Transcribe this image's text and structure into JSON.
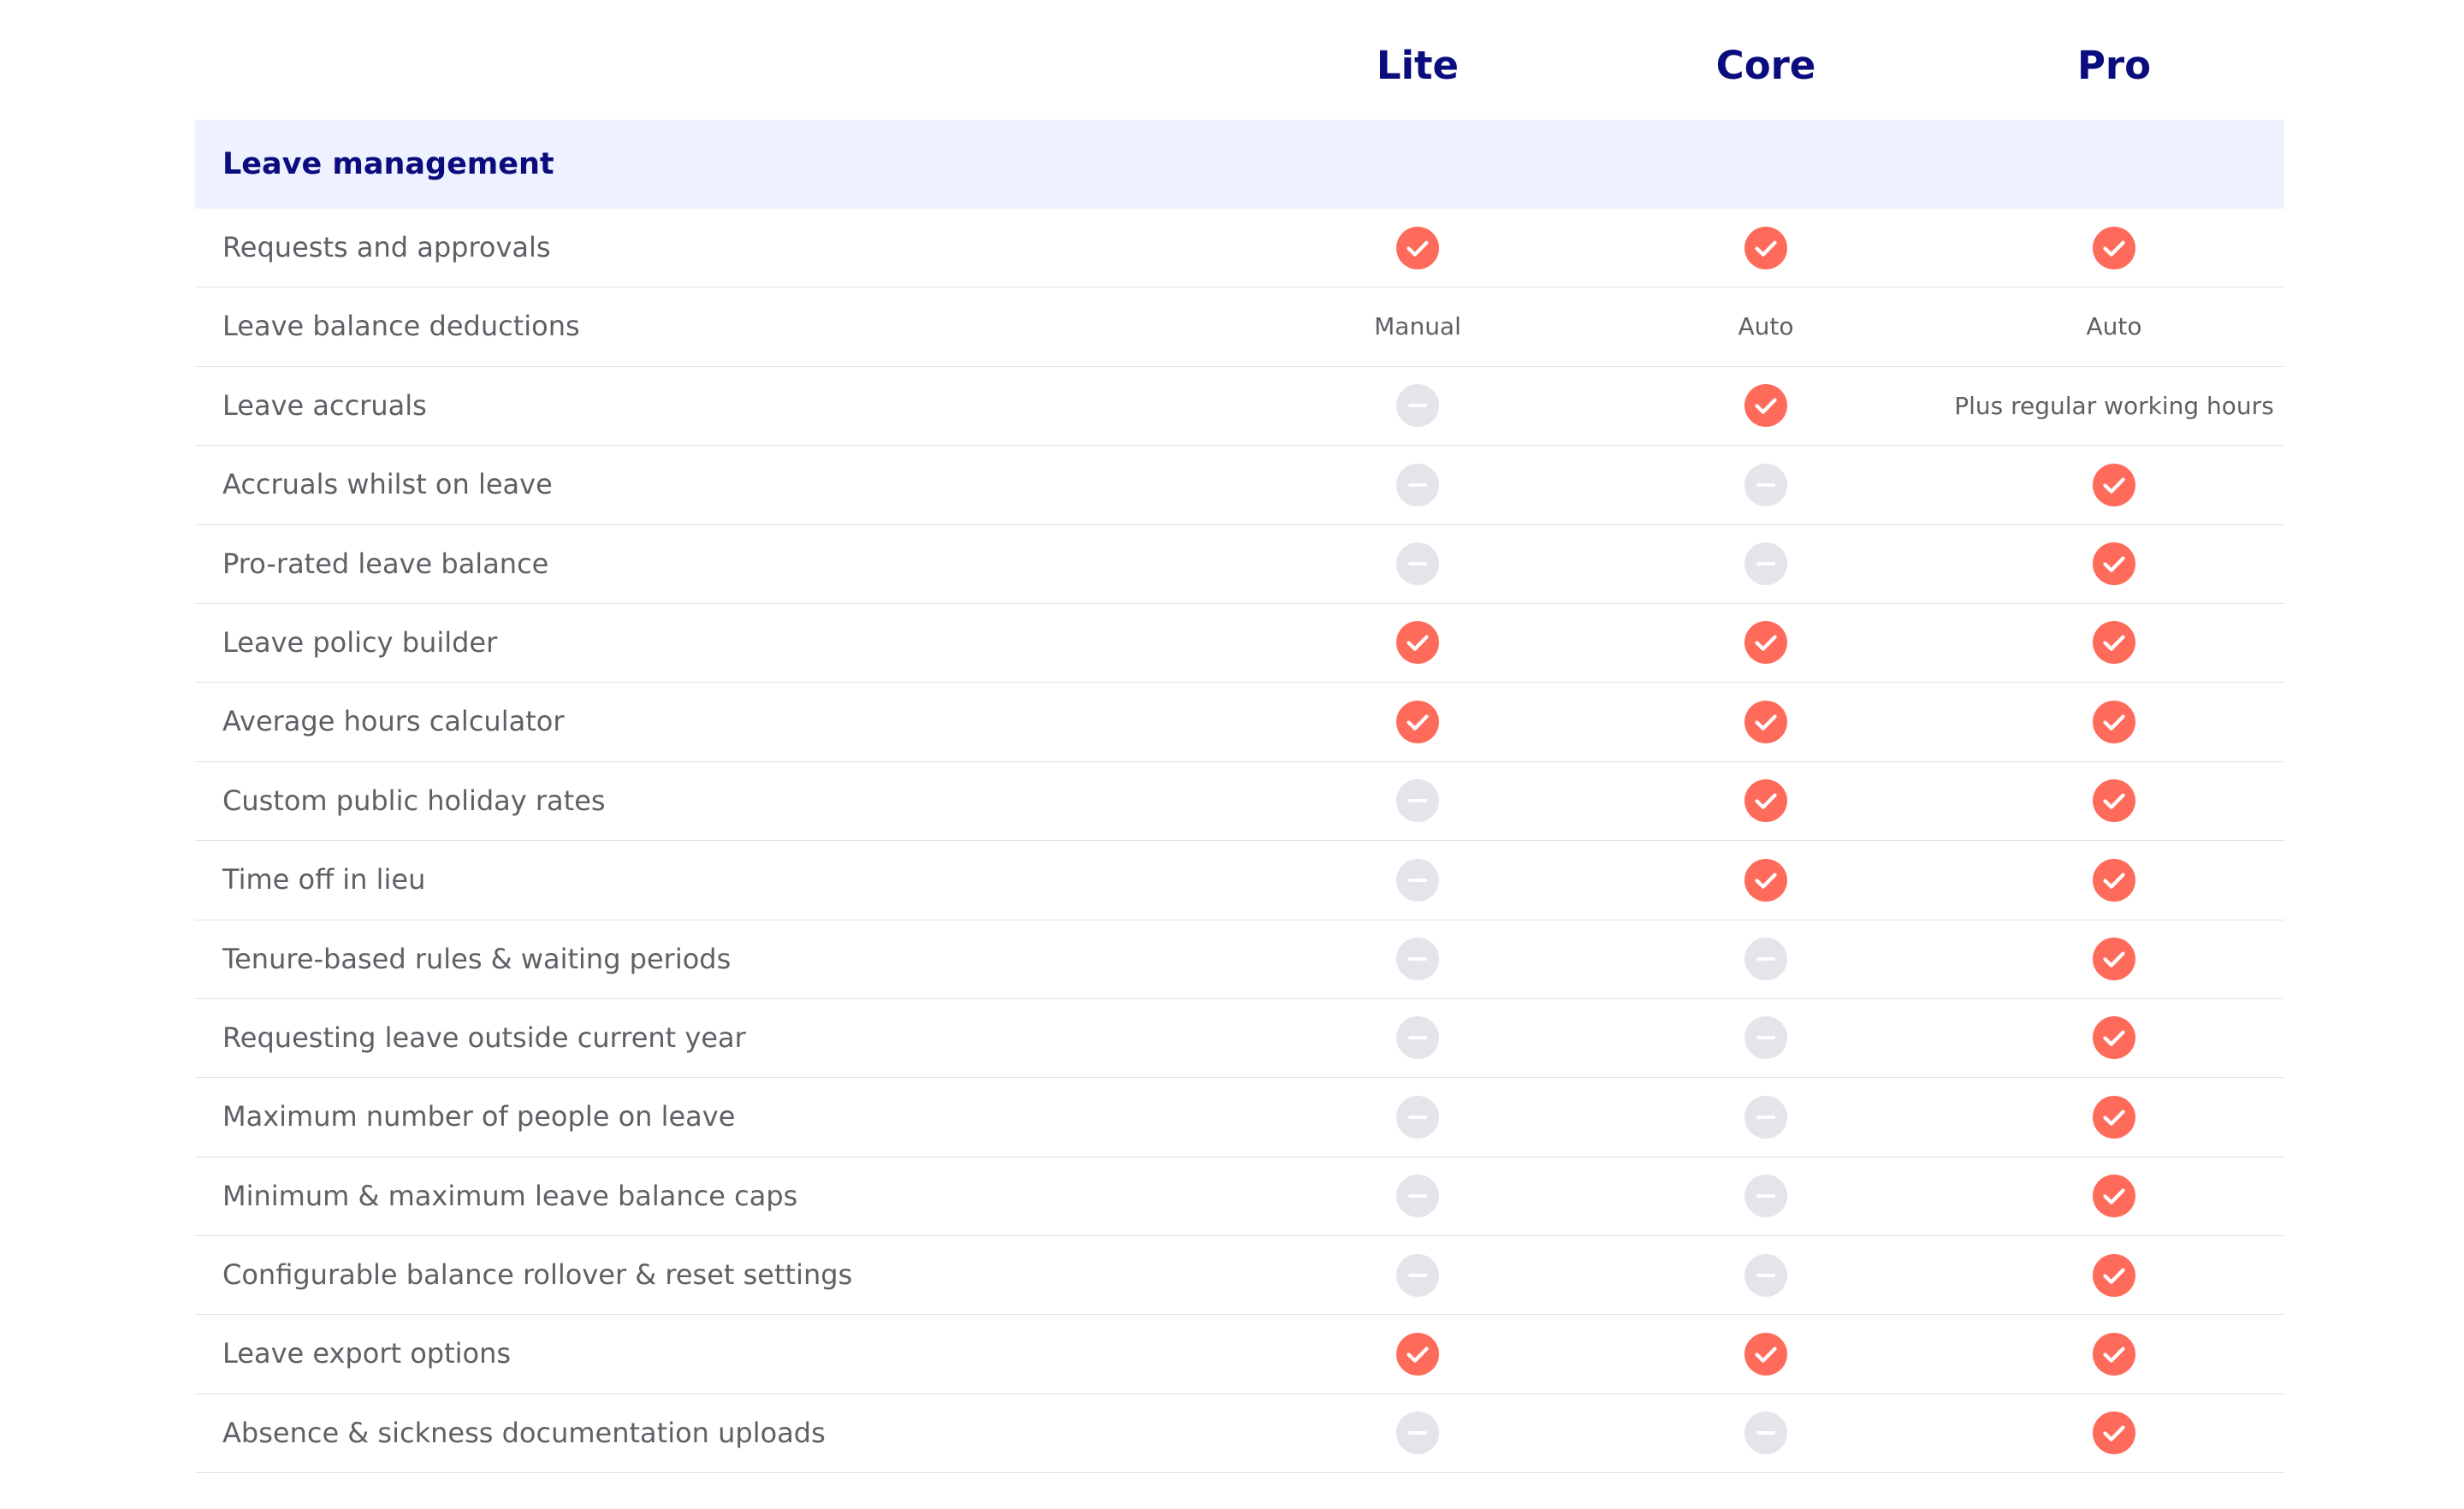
{
  "plans": [
    "Lite",
    "Core",
    "Pro"
  ],
  "section": {
    "title": "Leave management"
  },
  "colors": {
    "heading": "#0b0c7d",
    "check": "#ff6b5b",
    "dash": "#e4e4ea",
    "band": "#eef1ff"
  },
  "icons": {
    "included": "check-circle-icon",
    "not_included": "dash-circle-icon"
  },
  "rows": [
    {
      "feature": "Requests and approvals",
      "cells": [
        {
          "type": "check"
        },
        {
          "type": "check"
        },
        {
          "type": "check"
        }
      ]
    },
    {
      "feature": "Leave balance deductions",
      "cells": [
        {
          "type": "text",
          "text": "Manual"
        },
        {
          "type": "text",
          "text": "Auto"
        },
        {
          "type": "text",
          "text": "Auto"
        }
      ]
    },
    {
      "feature": "Leave accruals",
      "cells": [
        {
          "type": "dash"
        },
        {
          "type": "check"
        },
        {
          "type": "text",
          "text": "Plus regular working hours"
        }
      ]
    },
    {
      "feature": "Accruals whilst on leave",
      "cells": [
        {
          "type": "dash"
        },
        {
          "type": "dash"
        },
        {
          "type": "check"
        }
      ]
    },
    {
      "feature": "Pro-rated leave balance",
      "cells": [
        {
          "type": "dash"
        },
        {
          "type": "dash"
        },
        {
          "type": "check"
        }
      ]
    },
    {
      "feature": "Leave policy builder",
      "cells": [
        {
          "type": "check"
        },
        {
          "type": "check"
        },
        {
          "type": "check"
        }
      ]
    },
    {
      "feature": "Average hours calculator",
      "cells": [
        {
          "type": "check"
        },
        {
          "type": "check"
        },
        {
          "type": "check"
        }
      ]
    },
    {
      "feature": "Custom public holiday rates",
      "cells": [
        {
          "type": "dash"
        },
        {
          "type": "check"
        },
        {
          "type": "check"
        }
      ]
    },
    {
      "feature": "Time off in lieu",
      "cells": [
        {
          "type": "dash"
        },
        {
          "type": "check"
        },
        {
          "type": "check"
        }
      ]
    },
    {
      "feature": "Tenure-based rules & waiting periods",
      "cells": [
        {
          "type": "dash"
        },
        {
          "type": "dash"
        },
        {
          "type": "check"
        }
      ]
    },
    {
      "feature": "Requesting leave outside current year",
      "cells": [
        {
          "type": "dash"
        },
        {
          "type": "dash"
        },
        {
          "type": "check"
        }
      ]
    },
    {
      "feature": "Maximum number of people on leave",
      "cells": [
        {
          "type": "dash"
        },
        {
          "type": "dash"
        },
        {
          "type": "check"
        }
      ]
    },
    {
      "feature": "Minimum & maximum leave balance caps",
      "cells": [
        {
          "type": "dash"
        },
        {
          "type": "dash"
        },
        {
          "type": "check"
        }
      ]
    },
    {
      "feature": "Configurable balance rollover & reset settings",
      "cells": [
        {
          "type": "dash"
        },
        {
          "type": "dash"
        },
        {
          "type": "check"
        }
      ]
    },
    {
      "feature": "Leave export options",
      "cells": [
        {
          "type": "check"
        },
        {
          "type": "check"
        },
        {
          "type": "check"
        }
      ]
    },
    {
      "feature": "Absence & sickness documentation uploads",
      "cells": [
        {
          "type": "dash"
        },
        {
          "type": "dash"
        },
        {
          "type": "check"
        }
      ]
    }
  ]
}
